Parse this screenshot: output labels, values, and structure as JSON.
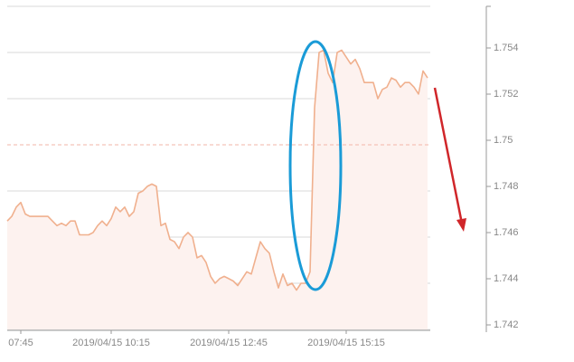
{
  "chart_data": {
    "type": "line",
    "categories": [
      null,
      null,
      null,
      "07:45",
      null,
      null,
      null,
      null,
      null,
      null,
      null,
      null,
      null,
      null,
      null,
      null,
      null,
      null,
      null,
      null,
      null,
      null,
      null,
      "2019/04/15 10:15",
      null,
      null,
      null,
      null,
      null,
      null,
      null,
      null,
      null,
      null,
      null,
      null,
      null,
      null,
      null,
      null,
      null,
      null,
      null,
      null,
      null,
      null,
      null,
      null,
      null,
      "2019/04/15 12:45",
      null,
      null,
      null,
      null,
      null,
      null,
      null,
      null,
      null,
      null,
      null,
      null,
      null,
      null,
      null,
      null,
      null,
      null,
      null,
      null,
      null,
      null,
      null,
      null,
      null,
      "2019/04/15 15:15",
      null,
      null,
      null,
      null,
      null,
      null,
      null,
      null,
      null,
      null,
      null,
      null,
      null,
      null,
      null,
      null,
      null,
      null
    ],
    "values": [
      1.7467,
      1.7469,
      1.7473,
      1.7475,
      1.747,
      1.7469,
      1.7469,
      1.7469,
      1.7469,
      1.7469,
      1.7467,
      1.7465,
      1.7466,
      1.7465,
      1.7467,
      1.7467,
      1.7461,
      1.7461,
      1.7461,
      1.7462,
      1.7465,
      1.7467,
      1.7465,
      1.7468,
      1.7473,
      1.7471,
      1.7473,
      1.7469,
      1.7471,
      1.7479,
      1.748,
      1.7482,
      1.7483,
      1.7482,
      1.7465,
      1.7466,
      1.7459,
      1.7458,
      1.7455,
      1.746,
      1.7462,
      1.746,
      1.7451,
      1.7452,
      1.7449,
      1.7443,
      1.744,
      1.7442,
      1.7443,
      1.7442,
      1.7441,
      1.7439,
      1.7442,
      1.7445,
      1.7444,
      1.7451,
      1.7458,
      1.7455,
      1.7453,
      1.7445,
      1.7438,
      1.7444,
      1.7439,
      1.744,
      1.7437,
      1.744,
      1.744,
      1.7445,
      1.7516,
      1.754,
      1.7541,
      1.7531,
      1.7527,
      1.754,
      1.7541,
      1.7538,
      1.7535,
      1.7537,
      1.7533,
      1.7527,
      1.7527,
      1.7527,
      1.752,
      1.7524,
      1.7525,
      1.7529,
      1.7528,
      1.7525,
      1.7527,
      1.7527,
      1.7525,
      1.7522,
      1.7532,
      1.7529
    ],
    "color": "#f0b08e",
    "fill_color": "#fdf2ef",
    "ylim": [
      1.742,
      1.756
    ],
    "yticks": [
      1.742,
      1.744,
      1.746,
      1.748,
      1.75,
      1.752,
      1.754
    ],
    "reference_line": 1.75,
    "grid": true,
    "axis_side": "right"
  }
}
